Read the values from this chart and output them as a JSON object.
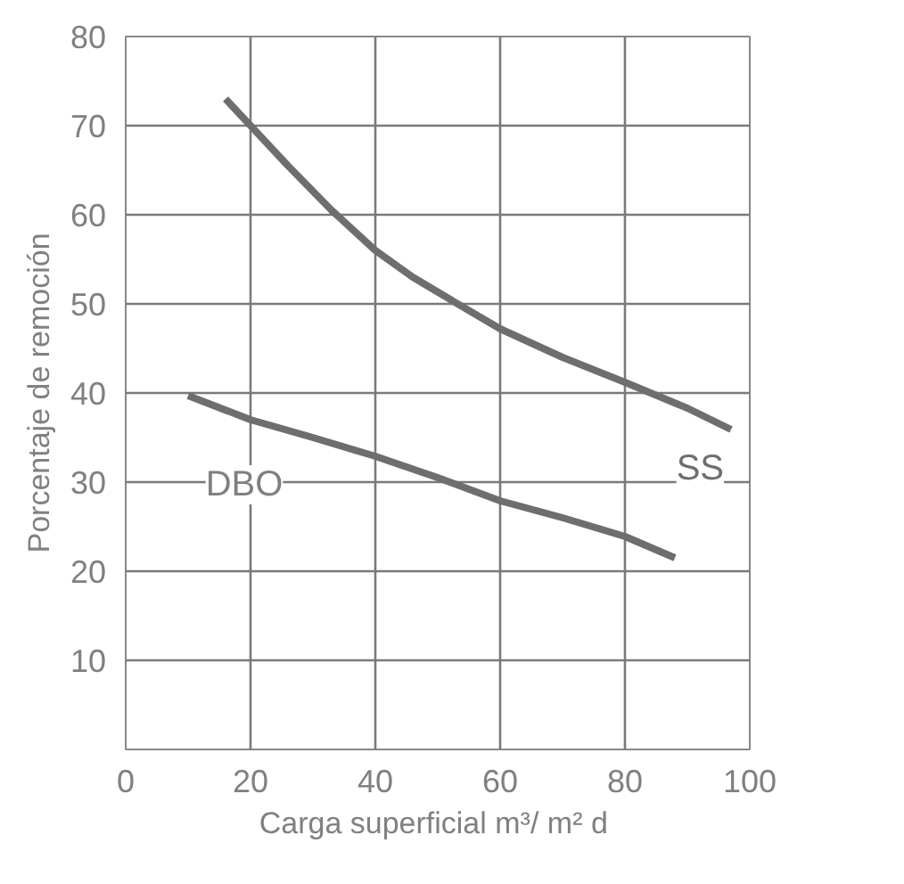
{
  "chart_data": {
    "type": "line",
    "xlabel": "Carga superficial  m³/ m² d",
    "ylabel": "Porcentaje de remoción",
    "xlim": [
      0,
      100
    ],
    "xticks": [
      0,
      20,
      40,
      60,
      80,
      100
    ],
    "ylim": [
      0,
      80
    ],
    "yticks": [
      10,
      20,
      30,
      40,
      50,
      60,
      70,
      80
    ],
    "grid": true,
    "marker": "none",
    "line_style": "solid",
    "series": [
      {
        "name": "SS",
        "color": "#6e6e6e",
        "x": [
          16,
          20,
          26,
          33,
          40,
          46,
          52,
          60,
          70,
          80,
          90,
          97
        ],
        "values": [
          73,
          70,
          65.5,
          60.5,
          56,
          53,
          50.5,
          47.2,
          44,
          41.2,
          38.3,
          35.9
        ]
      },
      {
        "name": "DBO",
        "color": "#6e6e6e",
        "x": [
          10,
          20,
          30,
          40,
          50,
          60,
          70,
          80,
          88
        ],
        "values": [
          39.7,
          37,
          35,
          32.9,
          30.5,
          27.9,
          26,
          23.9,
          21.5
        ]
      }
    ]
  }
}
